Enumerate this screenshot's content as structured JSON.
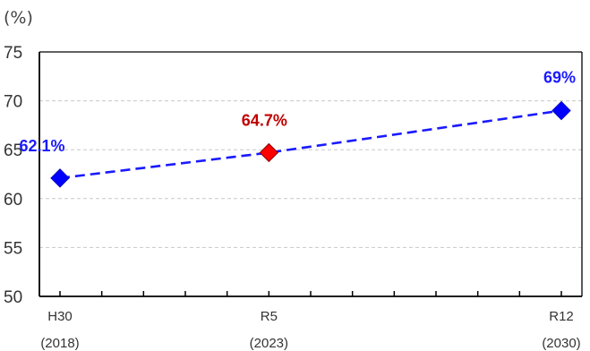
{
  "chart_data": {
    "type": "line",
    "unit_label": "(%)",
    "ylim": [
      50,
      75
    ],
    "yticks": [
      "50",
      "55",
      "60",
      "65",
      "70",
      "75"
    ],
    "x_years": [
      2018,
      2023,
      2030
    ],
    "x_labels": [
      {
        "era": "H30",
        "year": "(2018)"
      },
      {
        "era": "R5",
        "year": "(2023)"
      },
      {
        "era": "R12",
        "year": "(2030)"
      }
    ],
    "points": [
      {
        "x": 2018,
        "y": 62.1,
        "label": "62.1%",
        "color": "#0000ff"
      },
      {
        "x": 2023,
        "y": 64.7,
        "label": "64.7%",
        "color": "#ff0000"
      },
      {
        "x": 2030,
        "y": 69,
        "label": "69%",
        "color": "#0000ff"
      }
    ],
    "line_color": "#1a1aff",
    "line_style": "dashed",
    "label_colors": {
      "blue": "#1a1aff",
      "red": "#c00000"
    },
    "grid": true,
    "grid_style": "dashed horizontal"
  }
}
